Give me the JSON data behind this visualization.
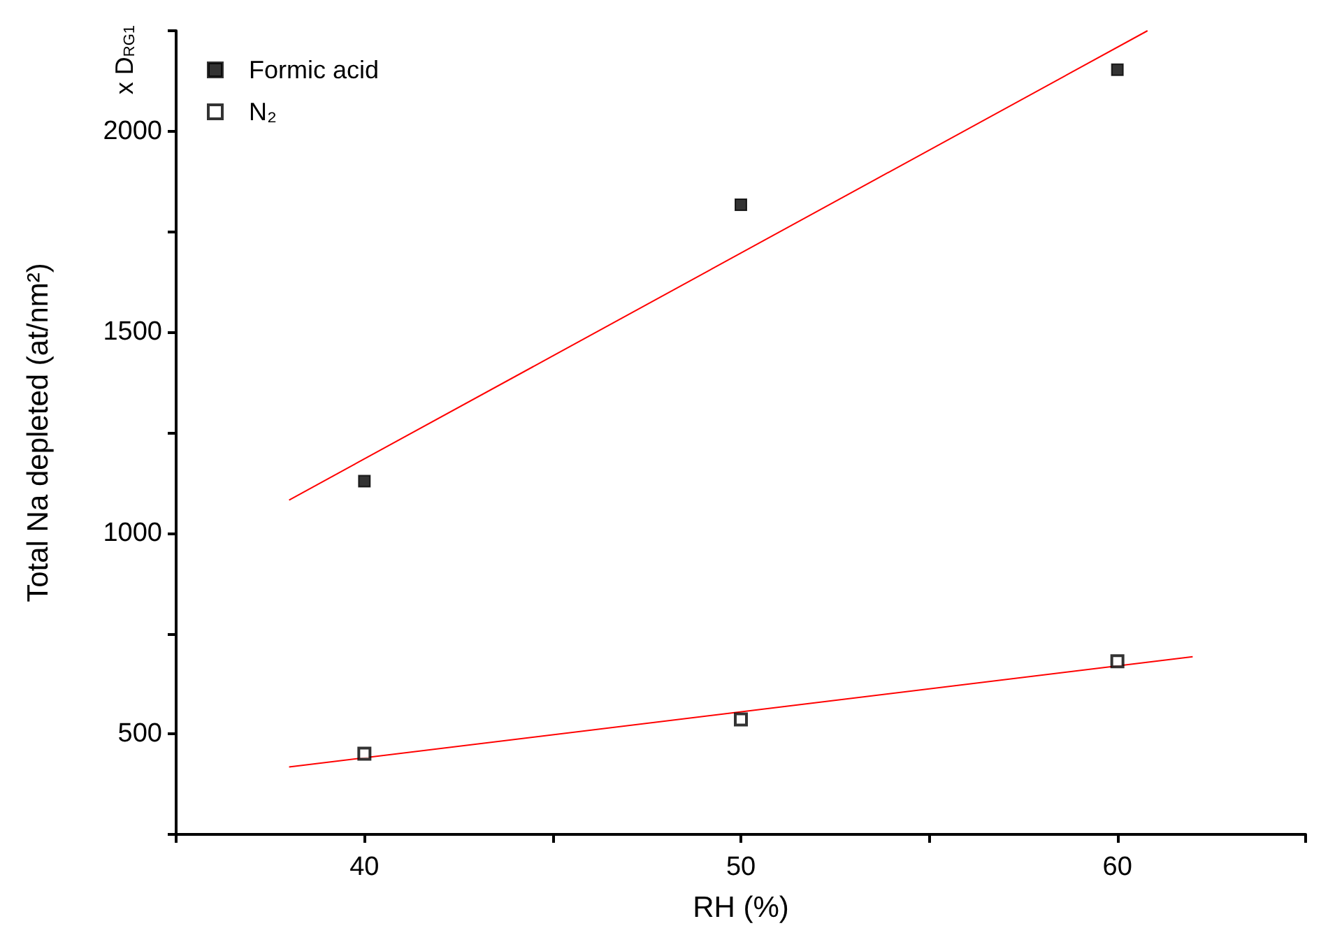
{
  "chart_data": {
    "type": "scatter",
    "xlabel": "RH (%)",
    "ylabel": "Total Na depleted (at/nm²)",
    "annotations": [
      "x D$_{RG1}$"
    ],
    "x": [
      40,
      50,
      60
    ],
    "xlim": [
      35,
      65
    ],
    "xticks": [
      {
        "value": 35,
        "label": null
      },
      40,
      {
        "value": 45,
        "label": null
      },
      50,
      {
        "value": 55,
        "label": null
      },
      60,
      {
        "value": 65,
        "label": null
      }
    ],
    "ylim": [
      250,
      2250
    ],
    "yticks": [
      {
        "value": 250,
        "label": null
      },
      500,
      {
        "value": 750,
        "label": null
      },
      1000,
      {
        "value": 1250,
        "label": null
      },
      1500,
      {
        "value": 1750,
        "label": null
      },
      2000,
      {
        "value": 2250,
        "label": null
      }
    ],
    "grid": false,
    "legend": "top left",
    "marker": "square",
    "series": [
      {
        "name": "Formic acid",
        "color": "#000000",
        "values": [
          1129,
          1817,
          2153
        ]
      },
      {
        "name": "N₂",
        "color": "#000000",
        "values": [
          451,
          536,
          681
        ]
      },
      {
        "type": "line",
        "color": "#ff0000",
        "x": [
          38,
          60.8
        ],
        "values": [
          1082,
          2250
        ],
        "marker": "none",
        "line_style": "solid"
      },
      {
        "type": "line",
        "color": "#ff0000",
        "x": [
          38,
          62
        ],
        "values": [
          418,
          692
        ],
        "marker": "none",
        "line_style": "solid"
      }
    ]
  }
}
